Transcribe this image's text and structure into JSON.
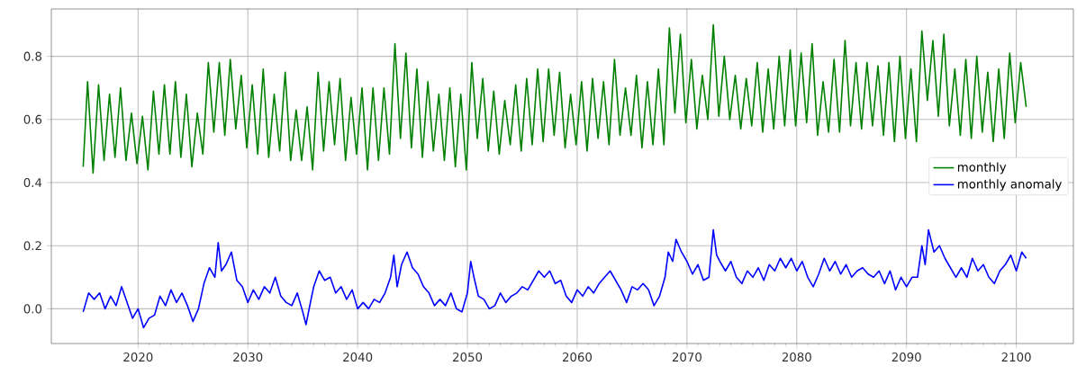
{
  "chart_data": {
    "type": "line",
    "xlim": [
      2012.1,
      2105.2
    ],
    "ylim": [
      -0.11,
      0.95
    ],
    "xticks": [
      2020,
      2030,
      2040,
      2050,
      2060,
      2070,
      2080,
      2090,
      2100
    ],
    "yticks": [
      {
        "value": 0,
        "label": "0.0"
      },
      {
        "value": 0.2,
        "label": "0.2"
      },
      {
        "value": 0.4,
        "label": "0.4"
      },
      {
        "value": 0.6,
        "label": "0.6"
      },
      {
        "value": 0.8,
        "label": "0.8"
      }
    ],
    "grid": true,
    "legend": "right",
    "series": [
      {
        "name": "monthly",
        "color": "#008000",
        "x": [
          2015.0,
          2015.4,
          2015.9,
          2016.4,
          2016.9,
          2017.4,
          2017.9,
          2018.4,
          2018.9,
          2019.4,
          2019.9,
          2020.4,
          2020.9,
          2021.4,
          2021.9,
          2022.4,
          2022.9,
          2023.4,
          2023.9,
          2024.4,
          2024.9,
          2025.4,
          2025.9,
          2026.4,
          2026.9,
          2027.4,
          2027.9,
          2028.4,
          2028.9,
          2029.4,
          2029.9,
          2030.4,
          2030.9,
          2031.4,
          2031.9,
          2032.4,
          2032.9,
          2033.4,
          2033.9,
          2034.4,
          2034.9,
          2035.4,
          2035.9,
          2036.4,
          2036.9,
          2037.4,
          2037.9,
          2038.4,
          2038.9,
          2039.4,
          2039.9,
          2040.4,
          2040.9,
          2041.4,
          2041.9,
          2042.4,
          2042.9,
          2043.4,
          2043.9,
          2044.4,
          2044.9,
          2045.4,
          2045.9,
          2046.4,
          2046.9,
          2047.4,
          2047.9,
          2048.4,
          2048.9,
          2049.4,
          2049.9,
          2050.4,
          2050.9,
          2051.4,
          2051.9,
          2052.4,
          2052.9,
          2053.4,
          2053.9,
          2054.4,
          2054.9,
          2055.4,
          2055.9,
          2056.4,
          2056.9,
          2057.4,
          2057.9,
          2058.4,
          2058.9,
          2059.4,
          2059.9,
          2060.4,
          2060.9,
          2061.4,
          2061.9,
          2062.4,
          2062.9,
          2063.4,
          2063.9,
          2064.4,
          2064.9,
          2065.4,
          2065.9,
          2066.4,
          2066.9,
          2067.4,
          2067.9,
          2068.4,
          2068.9,
          2069.4,
          2069.9,
          2070.4,
          2070.9,
          2071.4,
          2071.9,
          2072.4,
          2072.9,
          2073.4,
          2073.9,
          2074.4,
          2074.9,
          2075.4,
          2075.9,
          2076.4,
          2076.9,
          2077.4,
          2077.9,
          2078.4,
          2078.9,
          2079.4,
          2079.9,
          2080.4,
          2080.9,
          2081.4,
          2081.9,
          2082.4,
          2082.9,
          2083.4,
          2083.9,
          2084.4,
          2084.9,
          2085.4,
          2085.9,
          2086.4,
          2086.9,
          2087.4,
          2087.9,
          2088.4,
          2088.9,
          2089.4,
          2089.9,
          2090.4,
          2090.9,
          2091.4,
          2091.9,
          2092.4,
          2092.9,
          2093.4,
          2093.9,
          2094.4,
          2094.9,
          2095.4,
          2095.9,
          2096.4,
          2096.9,
          2097.4,
          2097.9,
          2098.4,
          2098.9,
          2099.4,
          2099.9,
          2100.4,
          2100.9
        ],
        "values": [
          0.45,
          0.72,
          0.43,
          0.71,
          0.47,
          0.68,
          0.48,
          0.7,
          0.47,
          0.62,
          0.46,
          0.61,
          0.44,
          0.69,
          0.49,
          0.71,
          0.49,
          0.72,
          0.48,
          0.68,
          0.45,
          0.62,
          0.49,
          0.78,
          0.56,
          0.78,
          0.55,
          0.79,
          0.57,
          0.74,
          0.51,
          0.71,
          0.49,
          0.76,
          0.48,
          0.68,
          0.5,
          0.75,
          0.47,
          0.63,
          0.47,
          0.64,
          0.44,
          0.75,
          0.5,
          0.72,
          0.52,
          0.73,
          0.47,
          0.67,
          0.49,
          0.7,
          0.44,
          0.7,
          0.47,
          0.7,
          0.49,
          0.84,
          0.54,
          0.81,
          0.51,
          0.76,
          0.48,
          0.72,
          0.5,
          0.68,
          0.47,
          0.7,
          0.45,
          0.68,
          0.44,
          0.78,
          0.54,
          0.73,
          0.5,
          0.69,
          0.49,
          0.66,
          0.52,
          0.71,
          0.5,
          0.73,
          0.52,
          0.76,
          0.53,
          0.76,
          0.55,
          0.75,
          0.51,
          0.68,
          0.52,
          0.72,
          0.5,
          0.73,
          0.54,
          0.72,
          0.52,
          0.79,
          0.55,
          0.7,
          0.55,
          0.74,
          0.51,
          0.72,
          0.52,
          0.76,
          0.52,
          0.89,
          0.62,
          0.87,
          0.59,
          0.79,
          0.57,
          0.74,
          0.6,
          0.9,
          0.61,
          0.8,
          0.6,
          0.74,
          0.57,
          0.73,
          0.58,
          0.78,
          0.56,
          0.76,
          0.57,
          0.8,
          0.58,
          0.82,
          0.58,
          0.81,
          0.59,
          0.84,
          0.55,
          0.72,
          0.56,
          0.79,
          0.56,
          0.85,
          0.58,
          0.78,
          0.57,
          0.78,
          0.58,
          0.77,
          0.55,
          0.78,
          0.53,
          0.8,
          0.54,
          0.76,
          0.53,
          0.88,
          0.66,
          0.85,
          0.61,
          0.87,
          0.58,
          0.76,
          0.55,
          0.79,
          0.54,
          0.8,
          0.56,
          0.75,
          0.53,
          0.76,
          0.54,
          0.81,
          0.59,
          0.78,
          0.64
        ]
      },
      {
        "name": "monthly anomaly",
        "color": "#0000ff",
        "x": [
          2015,
          2015.5,
          2016,
          2016.5,
          2017,
          2017.5,
          2018,
          2018.5,
          2019,
          2019.5,
          2020,
          2020.5,
          2021,
          2021.5,
          2022,
          2022.5,
          2023,
          2023.5,
          2024,
          2024.5,
          2025,
          2025.5,
          2026,
          2026.5,
          2027,
          2027.3,
          2027.6,
          2028,
          2028.5,
          2029,
          2029.5,
          2030,
          2030.5,
          2031,
          2031.5,
          2032,
          2032.5,
          2033,
          2033.5,
          2034,
          2034.5,
          2035,
          2035.3,
          2035.7,
          2036,
          2036.5,
          2037,
          2037.5,
          2038,
          2038.5,
          2039,
          2039.5,
          2040,
          2040.5,
          2041,
          2041.5,
          2042,
          2042.5,
          2043,
          2043.3,
          2043.6,
          2044,
          2044.5,
          2045,
          2045.5,
          2046,
          2046.5,
          2047,
          2047.5,
          2048,
          2048.5,
          2049,
          2049.5,
          2050,
          2050.3,
          2050.6,
          2051,
          2051.5,
          2052,
          2052.5,
          2053,
          2053.5,
          2054,
          2054.5,
          2055,
          2055.5,
          2056,
          2056.5,
          2057,
          2057.5,
          2058,
          2058.5,
          2059,
          2059.5,
          2060,
          2060.5,
          2061,
          2061.5,
          2062,
          2062.5,
          2063,
          2063.5,
          2064,
          2064.5,
          2065,
          2065.5,
          2066,
          2066.5,
          2067,
          2067.5,
          2068,
          2068.3,
          2068.7,
          2069,
          2069.5,
          2070,
          2070.5,
          2071,
          2071.5,
          2072,
          2072.4,
          2072.7,
          2073,
          2073.5,
          2074,
          2074.5,
          2075,
          2075.5,
          2076,
          2076.5,
          2077,
          2077.5,
          2078,
          2078.5,
          2079,
          2079.5,
          2080,
          2080.5,
          2081,
          2081.5,
          2082,
          2082.5,
          2083,
          2083.5,
          2084,
          2084.5,
          2085,
          2085.5,
          2086,
          2086.5,
          2087,
          2087.5,
          2088,
          2088.5,
          2089,
          2089.5,
          2090,
          2090.5,
          2091,
          2091.4,
          2091.7,
          2092,
          2092.5,
          2093,
          2093.5,
          2094,
          2094.5,
          2095,
          2095.5,
          2096,
          2096.5,
          2097,
          2097.5,
          2098,
          2098.5,
          2099,
          2099.5,
          2100,
          2100.5,
          2100.9
        ],
        "values": [
          -0.01,
          0.05,
          0.03,
          0.05,
          0.0,
          0.04,
          0.01,
          0.07,
          0.02,
          -0.03,
          0.0,
          -0.06,
          -0.03,
          -0.02,
          0.04,
          0.01,
          0.06,
          0.02,
          0.05,
          0.01,
          -0.04,
          0.0,
          0.08,
          0.13,
          0.1,
          0.21,
          0.12,
          0.14,
          0.18,
          0.09,
          0.07,
          0.02,
          0.06,
          0.03,
          0.07,
          0.05,
          0.1,
          0.04,
          0.02,
          0.01,
          0.05,
          -0.01,
          -0.05,
          0.02,
          0.07,
          0.12,
          0.09,
          0.1,
          0.05,
          0.07,
          0.03,
          0.06,
          0.0,
          0.02,
          0.0,
          0.03,
          0.02,
          0.05,
          0.1,
          0.17,
          0.07,
          0.14,
          0.18,
          0.13,
          0.11,
          0.07,
          0.05,
          0.01,
          0.03,
          0.01,
          0.05,
          0.0,
          -0.01,
          0.05,
          0.15,
          0.1,
          0.04,
          0.03,
          0.0,
          0.01,
          0.05,
          0.02,
          0.04,
          0.05,
          0.07,
          0.06,
          0.09,
          0.12,
          0.1,
          0.12,
          0.08,
          0.09,
          0.04,
          0.02,
          0.06,
          0.04,
          0.07,
          0.05,
          0.08,
          0.1,
          0.12,
          0.09,
          0.06,
          0.02,
          0.07,
          0.06,
          0.08,
          0.06,
          0.01,
          0.04,
          0.1,
          0.18,
          0.15,
          0.22,
          0.18,
          0.15,
          0.11,
          0.14,
          0.09,
          0.1,
          0.25,
          0.17,
          0.15,
          0.12,
          0.15,
          0.1,
          0.08,
          0.12,
          0.1,
          0.13,
          0.09,
          0.14,
          0.12,
          0.16,
          0.13,
          0.16,
          0.12,
          0.15,
          0.1,
          0.07,
          0.11,
          0.16,
          0.12,
          0.15,
          0.11,
          0.14,
          0.1,
          0.12,
          0.13,
          0.11,
          0.1,
          0.12,
          0.08,
          0.12,
          0.06,
          0.1,
          0.07,
          0.1,
          0.1,
          0.2,
          0.14,
          0.25,
          0.18,
          0.2,
          0.16,
          0.13,
          0.1,
          0.13,
          0.1,
          0.16,
          0.12,
          0.14,
          0.1,
          0.08,
          0.12,
          0.14,
          0.17,
          0.12,
          0.18,
          0.16
        ]
      }
    ]
  }
}
